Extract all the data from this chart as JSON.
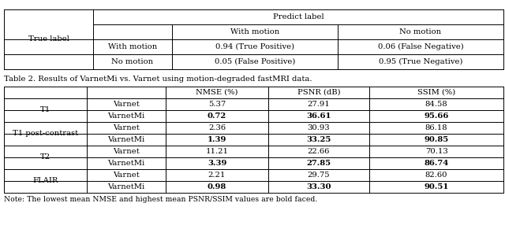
{
  "table2_caption": "Table 2. Results of VarnetMi vs. Varnet using motion-degraded fastMRI data.",
  "note": "Note: The lowest mean NMSE and highest mean PSNR/SSIM values are bold faced.",
  "confusion_matrix": {
    "header_top": "Predict label",
    "row_header": "True label",
    "col_headers": [
      "",
      "With motion",
      "No motion"
    ],
    "rows": [
      [
        "With motion",
        "0.94 (True Positive)",
        "0.06 (False Negative)"
      ],
      [
        "No motion",
        "0.05 (False Positive)",
        "0.95 (True Negative)"
      ]
    ]
  },
  "table2": {
    "col_headers": [
      "",
      "",
      "NMSE (%)",
      "PSNR (dB)",
      "SSIM (%)"
    ],
    "rows": [
      [
        "T1",
        "Varnet",
        "5.37",
        "27.91",
        "84.58",
        false,
        false,
        false
      ],
      [
        "",
        "VarnetMi",
        "0.72",
        "36.61",
        "95.66",
        true,
        true,
        true
      ],
      [
        "T1 post-contrast",
        "Varnet",
        "2.36",
        "30.93",
        "86.18",
        false,
        false,
        false
      ],
      [
        "",
        "VarnetMi",
        "1.39",
        "33.25",
        "90.85",
        true,
        true,
        true
      ],
      [
        "T2",
        "Varnet",
        "11.21",
        "22.66",
        "70.13",
        false,
        false,
        false
      ],
      [
        "",
        "VarnetMi",
        "3.39",
        "27.85",
        "86.74",
        true,
        true,
        true
      ],
      [
        "FLAIR",
        "Varnet",
        "2.21",
        "29.75",
        "82.60",
        false,
        false,
        false
      ],
      [
        "",
        "VarnetMi",
        "0.98",
        "33.30",
        "90.51",
        true,
        true,
        true
      ]
    ]
  },
  "bg_color": "#ffffff",
  "text_color": "#000000",
  "line_color": "#000000",
  "font_size": 7.2,
  "font_family": "serif"
}
